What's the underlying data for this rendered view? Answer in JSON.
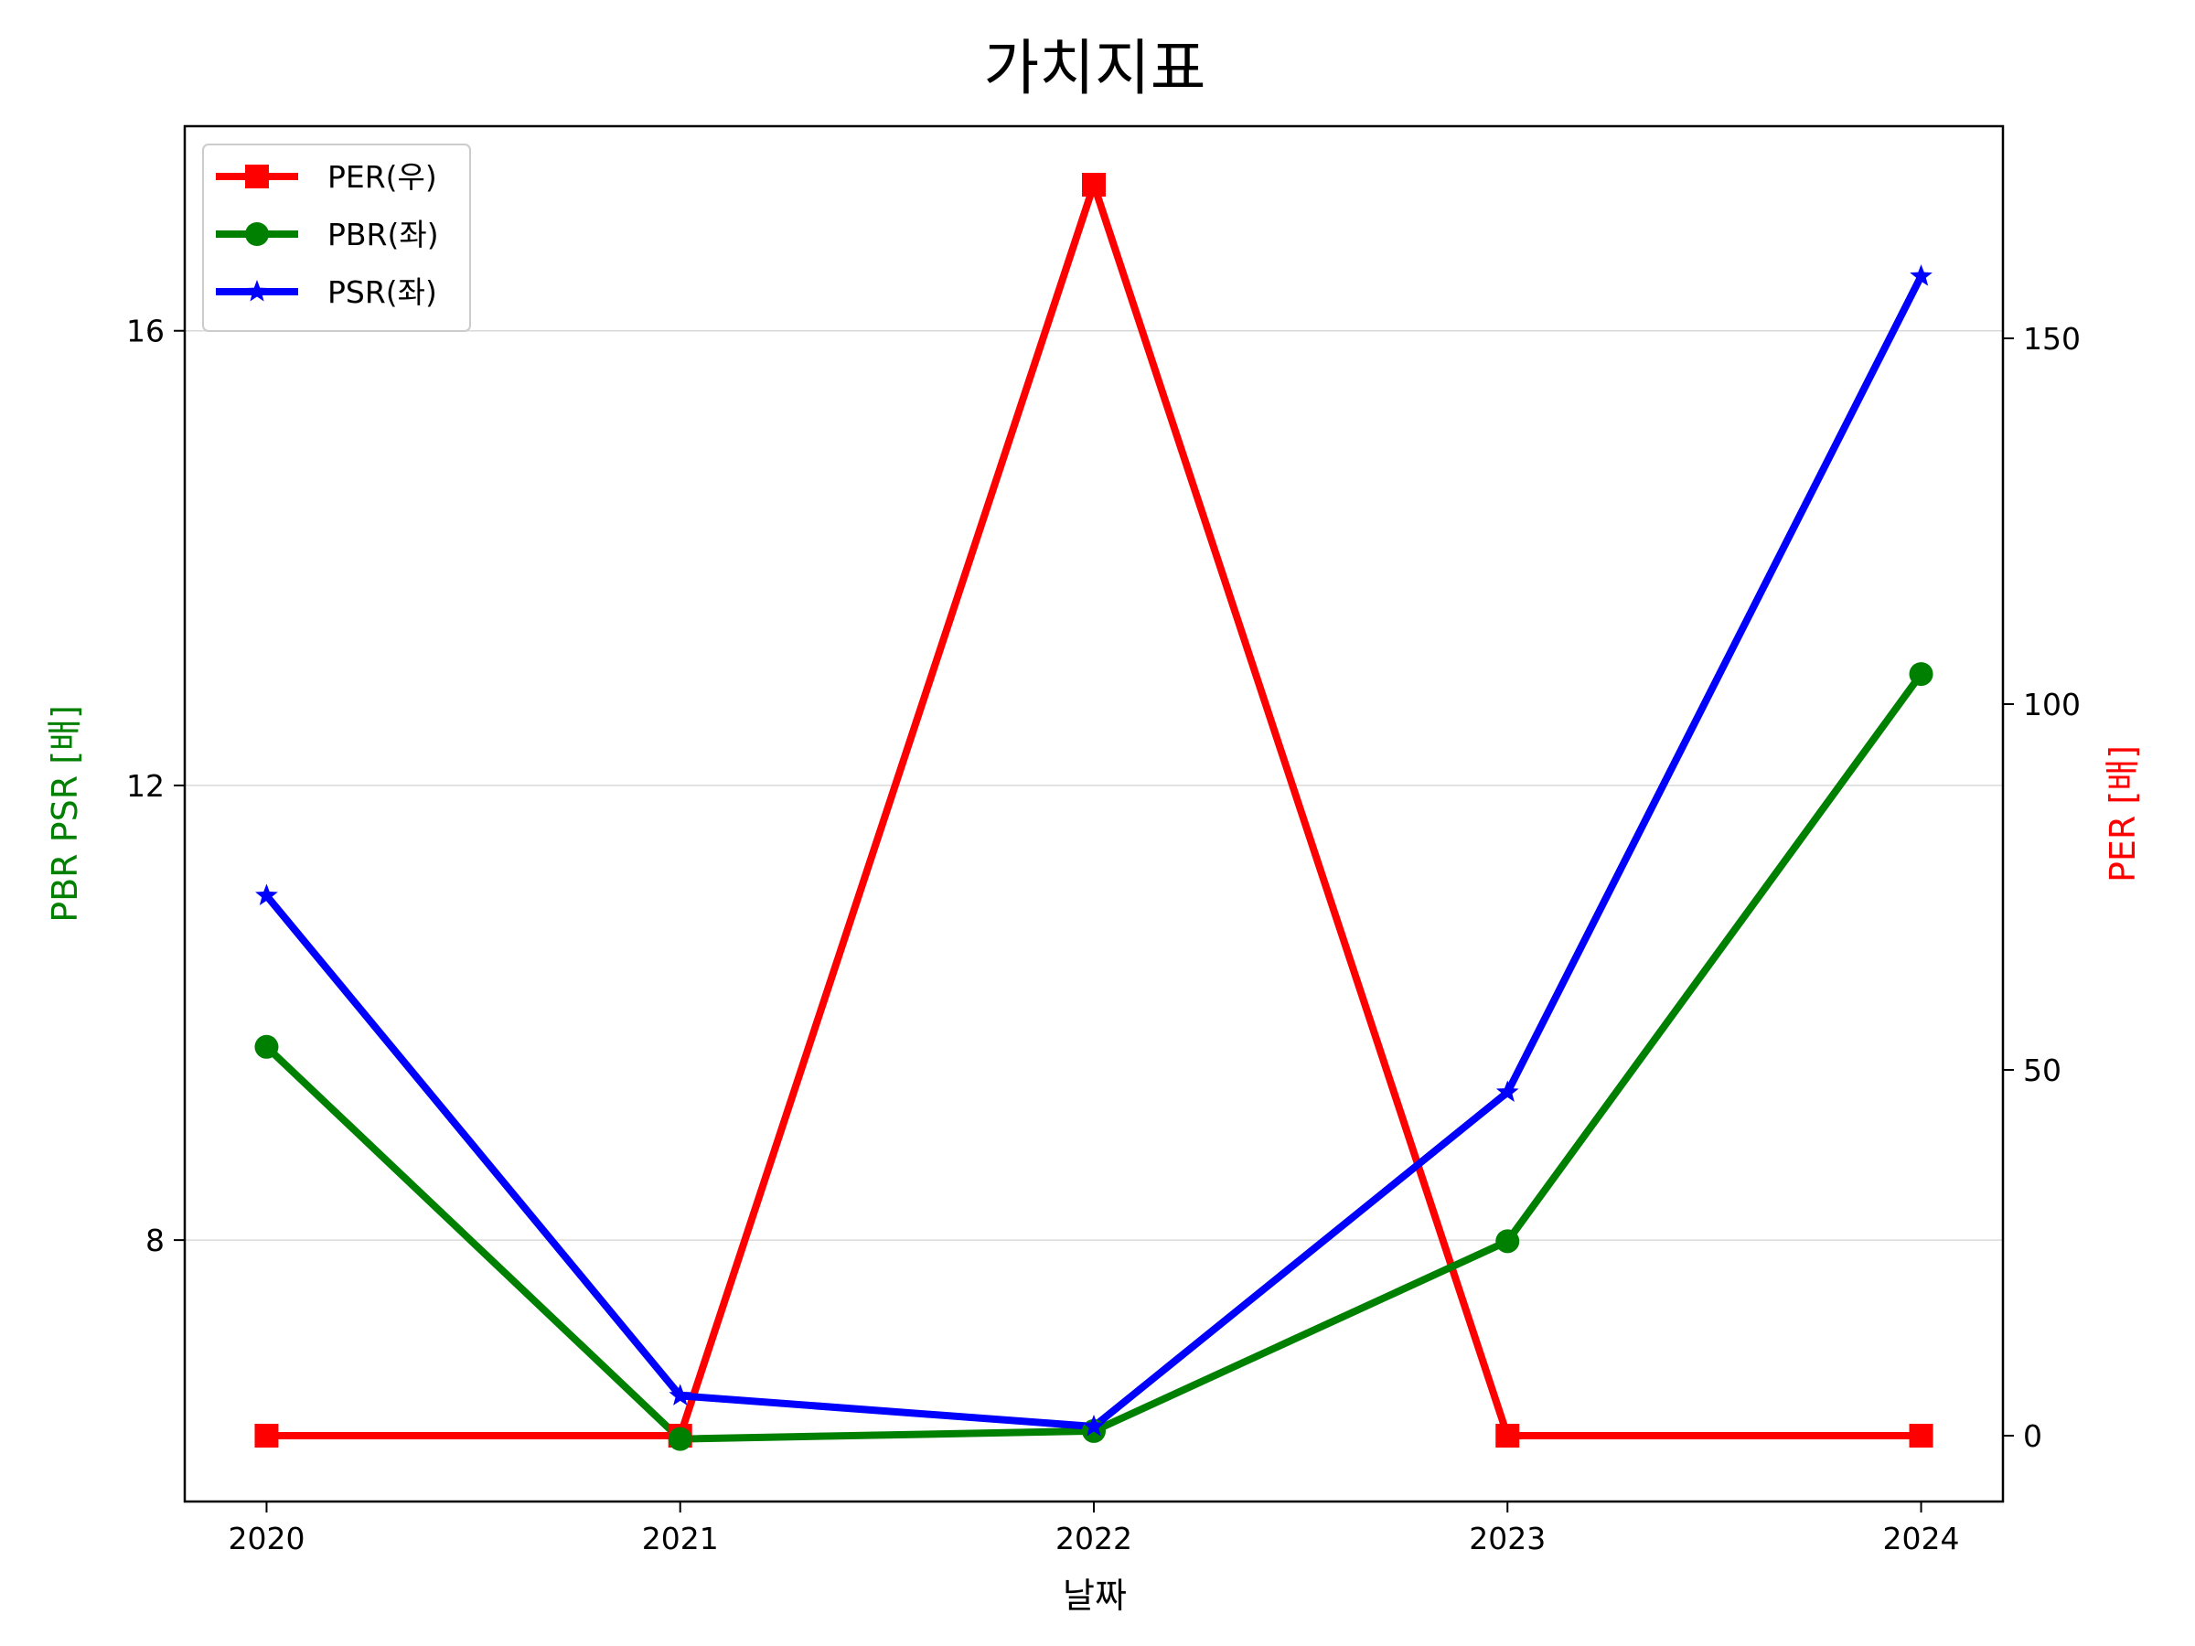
{
  "chart_data": {
    "type": "line",
    "title": "가치지표",
    "xlabel": "날짜",
    "ylabel_left": "PBR PSR [배]",
    "ylabel_right": "PER [배]",
    "ylabel_left_color": "#008000",
    "ylabel_right_color": "#ff0000",
    "categories": [
      "2020",
      "2021",
      "2022",
      "2023",
      "2024"
    ],
    "ylim_left": [
      5.7,
      17.8
    ],
    "ylim_right": [
      -9,
      179
    ],
    "yticks_left": [
      8,
      12,
      16
    ],
    "yticks_right": [
      0,
      50,
      100,
      150
    ],
    "grid": "horizontal (left axis)",
    "legend_position": "top-left",
    "series": [
      {
        "name": "PER(우)",
        "axis": "right",
        "color": "#ff0000",
        "marker": "square",
        "values": [
          0,
          0,
          171,
          0,
          0
        ]
      },
      {
        "name": "PBR(좌)",
        "axis": "left",
        "color": "#008000",
        "marker": "circle",
        "values": [
          9.7,
          6.25,
          6.32,
          7.99,
          12.98
        ]
      },
      {
        "name": "PSR(좌)",
        "axis": "left",
        "color": "#0000ff",
        "marker": "star",
        "values": [
          11.03,
          6.63,
          6.36,
          9.3,
          16.48
        ]
      }
    ]
  }
}
